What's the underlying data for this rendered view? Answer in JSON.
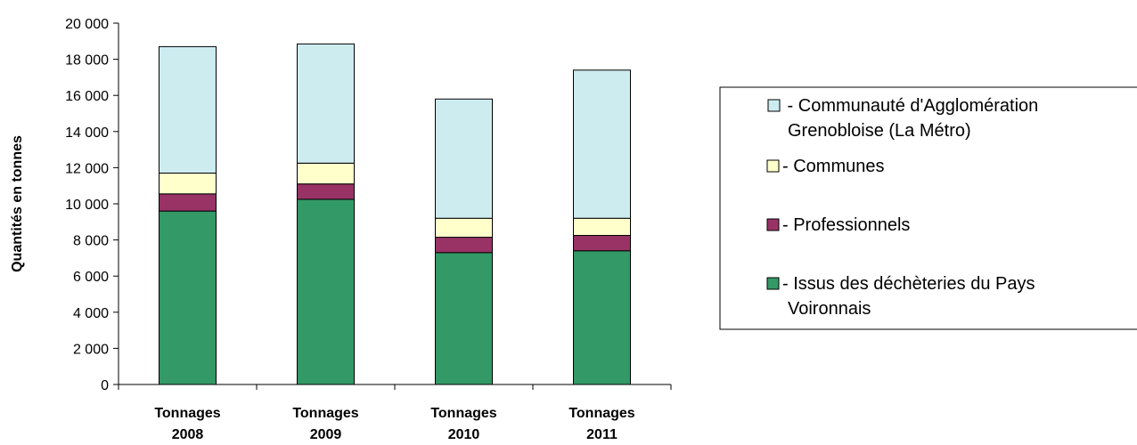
{
  "chart_data": {
    "type": "bar",
    "stacked": true,
    "categories": [
      [
        "Tonnages",
        "2008"
      ],
      [
        "Tonnages",
        "2009"
      ],
      [
        "Tonnages",
        "2010"
      ],
      [
        "Tonnages",
        "2011"
      ]
    ],
    "series": [
      {
        "name": "- Issus des déchèteries du Pays Voironnais",
        "legend_lines": [
          "- Issus des déchèteries du Pays",
          "Voironnais"
        ],
        "color": "#339966",
        "values": [
          9600,
          10250,
          7300,
          7400
        ]
      },
      {
        "name": "- Professionnels",
        "legend_lines": [
          "- Professionnels"
        ],
        "color": "#993366",
        "values": [
          950,
          850,
          850,
          850
        ]
      },
      {
        "name": "- Communes",
        "legend_lines": [
          "- Communes"
        ],
        "color": "#FFFFCC",
        "values": [
          1150,
          1150,
          1050,
          950
        ]
      },
      {
        "name": " - Communauté d'Agglomération Grenobloise (La Métro)",
        "legend_lines": [
          " - Communauté d'Agglomération",
          "Grenobloise (La Métro)"
        ],
        "color": "#CCECF0",
        "values": [
          7000,
          6600,
          6600,
          8200
        ]
      }
    ],
    "ylabel": "Quantités en tonnes",
    "ylim": [
      0,
      20000
    ],
    "yticks": [
      0,
      2000,
      4000,
      6000,
      8000,
      10000,
      12000,
      14000,
      16000,
      18000,
      20000
    ],
    "ytick_labels": [
      "0",
      "2 000",
      "4 000",
      "6 000",
      "8 000",
      "10 000",
      "12 000",
      "14 000",
      "16 000",
      "18 000",
      "20 000"
    ],
    "legend_order": [
      3,
      2,
      1,
      0
    ],
    "legend_position": "right",
    "grid": false
  }
}
